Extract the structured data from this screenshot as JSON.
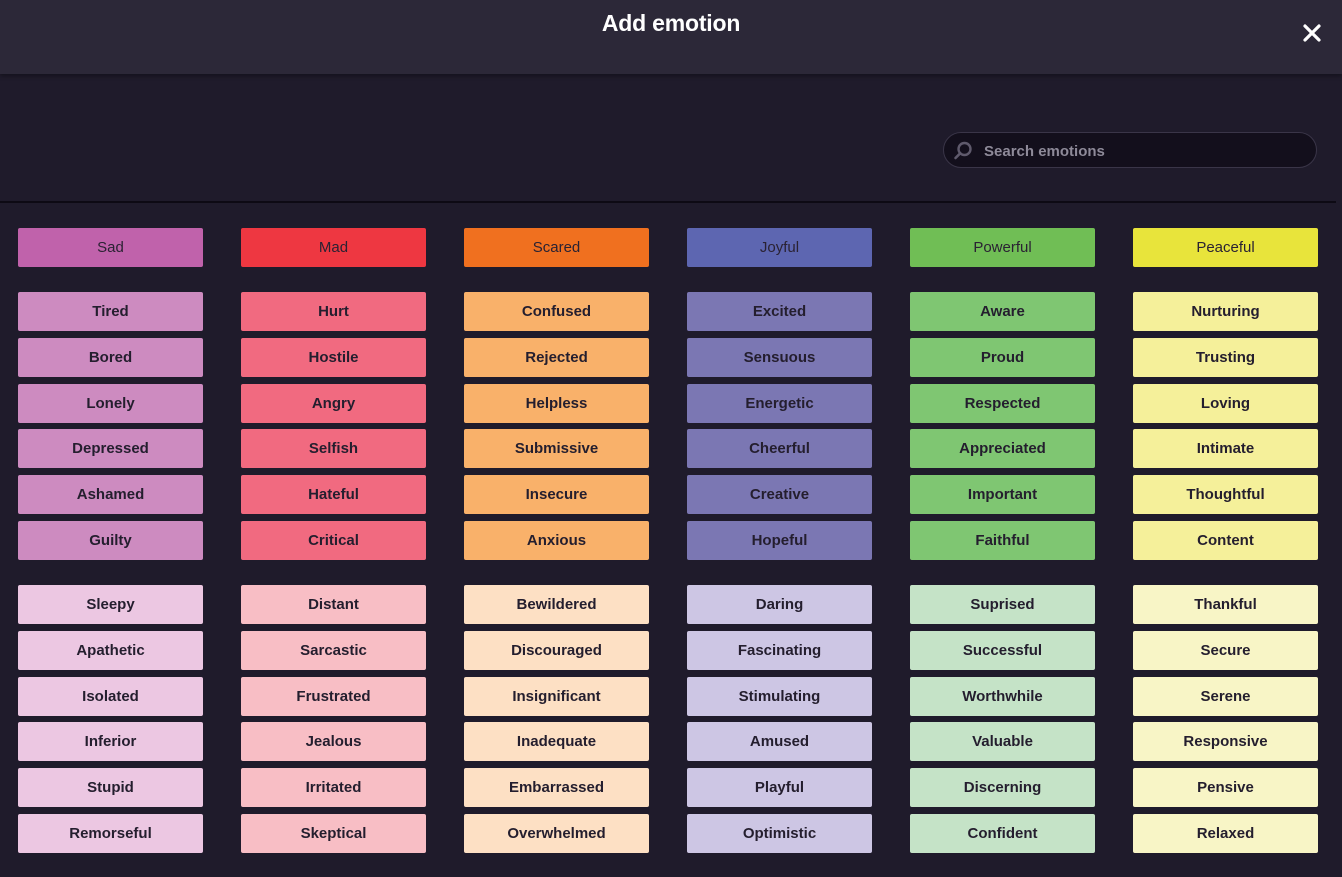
{
  "dialog": {
    "title": "Add emotion",
    "close_icon": "close-icon"
  },
  "search": {
    "placeholder": "Search emotions",
    "value": "",
    "icon": "search-icon"
  },
  "categories": [
    {
      "name": "Sad",
      "colors": {
        "primary": "#c062ab",
        "secondary": "#cd8bc0",
        "tertiary": "#ecc7e2"
      },
      "secondary": [
        "Tired",
        "Bored",
        "Lonely",
        "Depressed",
        "Ashamed",
        "Guilty"
      ],
      "tertiary": [
        "Sleepy",
        "Apathetic",
        "Isolated",
        "Inferior",
        "Stupid",
        "Remorseful"
      ]
    },
    {
      "name": "Mad",
      "colors": {
        "primary": "#ee3741",
        "secondary": "#f16a80",
        "tertiary": "#f8bec5"
      },
      "secondary": [
        "Hurt",
        "Hostile",
        "Angry",
        "Selfish",
        "Hateful",
        "Critical"
      ],
      "tertiary": [
        "Distant",
        "Sarcastic",
        "Frustrated",
        "Jealous",
        "Irritated",
        "Skeptical"
      ]
    },
    {
      "name": "Scared",
      "colors": {
        "primary": "#f0701f",
        "secondary": "#f9b16a",
        "tertiary": "#fde0c4"
      },
      "secondary": [
        "Confused",
        "Rejected",
        "Helpless",
        "Submissive",
        "Insecure",
        "Anxious"
      ],
      "tertiary": [
        "Bewildered",
        "Discouraged",
        "Insignificant",
        "Inadequate",
        "Embarrassed",
        "Overwhelmed"
      ]
    },
    {
      "name": "Joyful",
      "colors": {
        "primary": "#5d66b1",
        "secondary": "#7b77b3",
        "tertiary": "#cdc6e4"
      },
      "secondary": [
        "Excited",
        "Sensuous",
        "Energetic",
        "Cheerful",
        "Creative",
        "Hopeful"
      ],
      "tertiary": [
        "Daring",
        "Fascinating",
        "Stimulating",
        "Amused",
        "Playful",
        "Optimistic"
      ]
    },
    {
      "name": "Powerful",
      "colors": {
        "primary": "#70be55",
        "secondary": "#7fc672",
        "tertiary": "#c5e3c7"
      },
      "secondary": [
        "Aware",
        "Proud",
        "Respected",
        "Appreciated",
        "Important",
        "Faithful"
      ],
      "tertiary": [
        "Suprised",
        "Successful",
        "Worthwhile",
        "Valuable",
        "Discerning",
        "Confident"
      ]
    },
    {
      "name": "Peaceful",
      "colors": {
        "primary": "#e8e43b",
        "secondary": "#f5f09a",
        "tertiary": "#f8f5c6"
      },
      "secondary": [
        "Nurturing",
        "Trusting",
        "Loving",
        "Intimate",
        "Thoughtful",
        "Content"
      ],
      "tertiary": [
        "Thankful",
        "Secure",
        "Serene",
        "Responsive",
        "Pensive",
        "Relaxed"
      ]
    }
  ]
}
